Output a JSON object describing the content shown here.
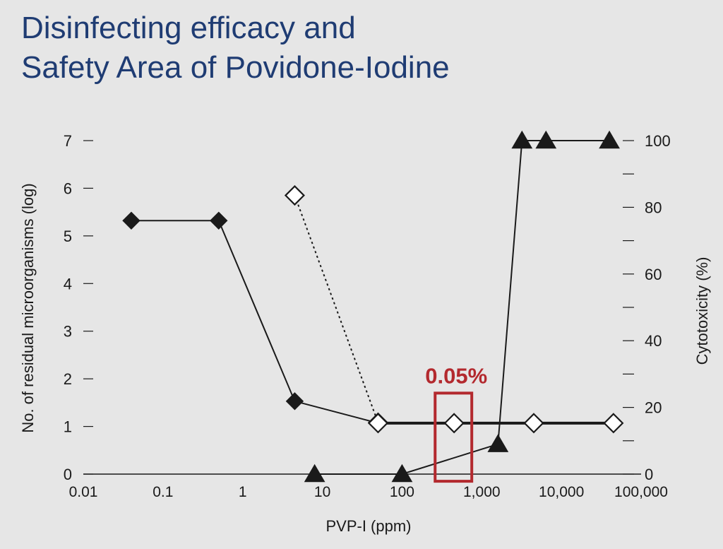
{
  "title_lines": [
    "Disinfecting efficacy and",
    "Safety Area of Povidone-Iodine"
  ],
  "colors": {
    "title": "#1f3c73",
    "highlight": "#b3292e",
    "axis": "#1a1a1a",
    "background": "#e6e6e6"
  },
  "chart_data": {
    "type": "line",
    "title": "Disinfecting efficacy and Safety Area of Povidone-Iodine",
    "xlabel": "PVP-I (ppm)",
    "ylabel_left": "No. of residual microorganisms (log)",
    "ylabel_right": "Cytotoxicity (%)",
    "x_scale": "log",
    "xlim": [
      0.01,
      100000
    ],
    "x_ticks": [
      0.01,
      0.1,
      1,
      10,
      100,
      1000,
      10000,
      100000
    ],
    "x_tick_labels": [
      "0.01",
      "0.1",
      "1",
      "10",
      "100",
      "1,000",
      "10,000",
      "100,000"
    ],
    "ylim_left": [
      0,
      7
    ],
    "y_ticks_left": [
      0,
      1,
      2,
      3,
      4,
      5,
      6,
      7
    ],
    "y_tick_labels_left": [
      "0",
      "1",
      "2",
      "3",
      "4",
      "5",
      "6",
      "7"
    ],
    "ylim_right": [
      0,
      100
    ],
    "y_ticks_right": [
      0,
      20,
      40,
      60,
      80,
      100
    ],
    "y_tick_labels_right": [
      "0",
      "20",
      "40",
      "60",
      "80",
      "100"
    ],
    "y_minor_ticks_right": [
      10,
      30,
      50,
      70,
      90
    ],
    "series": [
      {
        "marker": "filled-diamond",
        "line": "solid",
        "axis": "left",
        "x": [
          0.04,
          0.5,
          4.5,
          50
        ],
        "y": [
          5.32,
          5.32,
          1.53,
          1.07
        ]
      },
      {
        "marker": "open-diamond",
        "line": "dotted",
        "axis": "left",
        "x": [
          4.5,
          50
        ],
        "y": [
          5.85,
          1.08
        ]
      },
      {
        "marker": "open-diamond",
        "line": "solid-thick",
        "axis": "left",
        "x": [
          50,
          450,
          4500,
          45000
        ],
        "y": [
          1.07,
          1.07,
          1.07,
          1.07
        ]
      },
      {
        "marker": "filled-triangle",
        "line": "solid",
        "axis": "right",
        "x": [
          8,
          100,
          1600,
          3200,
          6400,
          40000
        ],
        "y": [
          0,
          0,
          9,
          100,
          100,
          100
        ]
      }
    ],
    "annotation": {
      "label": "0.05%",
      "x_range": [
        260,
        750
      ],
      "y_range_left": [
        -0.15,
        1.7
      ]
    },
    "grid": false,
    "legend": "none"
  }
}
